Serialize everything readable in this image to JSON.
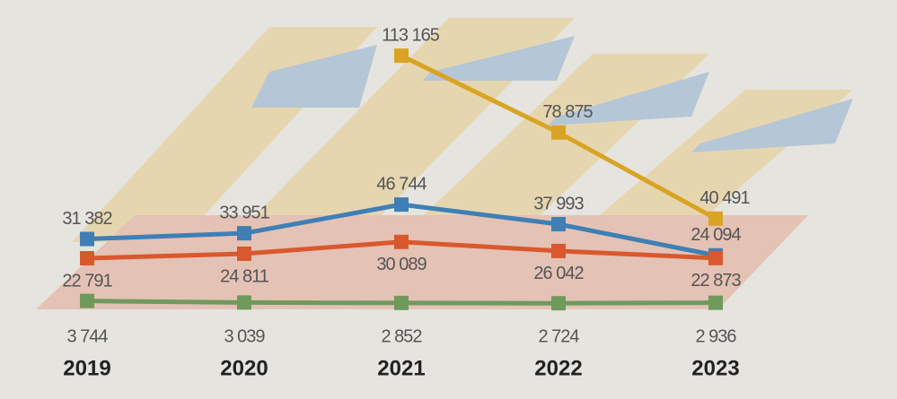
{
  "chart_data": {
    "type": "line",
    "categories": [
      "2019",
      "2020",
      "2021",
      "2022",
      "2023"
    ],
    "series": [
      {
        "color": "#d9a424",
        "values": [
          null,
          null,
          113165,
          78875,
          40491
        ],
        "value_labels": [
          null,
          null,
          "113 165",
          "78 875",
          "40 491"
        ]
      },
      {
        "color": "#3f7fb5",
        "values": [
          31382,
          33951,
          46744,
          37993,
          24094
        ],
        "value_labels": [
          "31 382",
          "33 951",
          "46 744",
          "37 993",
          "24 094"
        ]
      },
      {
        "color": "#d9582e",
        "values": [
          22791,
          24811,
          30089,
          26042,
          22873
        ],
        "value_labels": [
          "22 791",
          "24 811",
          "30 089",
          "26 042",
          "22 873"
        ]
      },
      {
        "color": "#6f9a5c",
        "values": [
          3744,
          3039,
          2852,
          2724,
          2936
        ],
        "value_labels": [
          "3 744",
          "3 039",
          "2 852",
          "2 724",
          "2 936"
        ]
      }
    ],
    "ylim": [
      0,
      130000
    ]
  }
}
